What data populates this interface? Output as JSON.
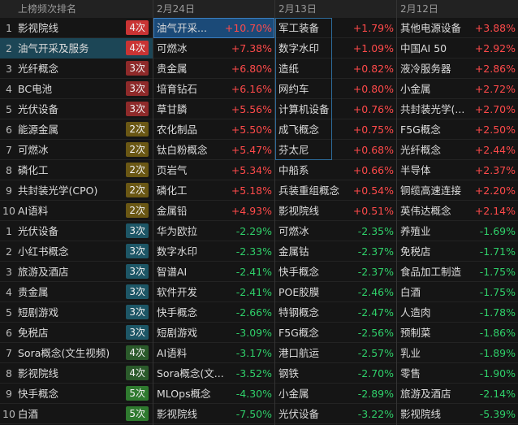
{
  "ranking": {
    "header": "上榜频次排名",
    "rows": [
      {
        "rank": 1,
        "name": "影视院线",
        "count": "4次",
        "badge_color": "#c93434"
      },
      {
        "rank": 2,
        "name": "油气开采及服务",
        "count": "4次",
        "badge_color": "#c93434"
      },
      {
        "rank": 3,
        "name": "光纤概念",
        "count": "3次",
        "badge_color": "#8e2a2a"
      },
      {
        "rank": 4,
        "name": "BC电池",
        "count": "3次",
        "badge_color": "#8e2a2a"
      },
      {
        "rank": 5,
        "name": "光伏设备",
        "count": "3次",
        "badge_color": "#8e2a2a"
      },
      {
        "rank": 6,
        "name": "能源金属",
        "count": "2次",
        "badge_color": "#6a5714"
      },
      {
        "rank": 7,
        "name": "可燃冰",
        "count": "2次",
        "badge_color": "#6a5714"
      },
      {
        "rank": 8,
        "name": "磷化工",
        "count": "2次",
        "badge_color": "#6a5714"
      },
      {
        "rank": 9,
        "name": "共封装光学(CPO)",
        "count": "2次",
        "badge_color": "#6a5714"
      },
      {
        "rank": 10,
        "name": "AI语料",
        "count": "2次",
        "badge_color": "#6a5714"
      },
      {
        "rank": 1,
        "name": "光伏设备",
        "count": "3次",
        "badge_color": "#1d5666"
      },
      {
        "rank": 2,
        "name": "小红书概念",
        "count": "3次",
        "badge_color": "#1d5666"
      },
      {
        "rank": 3,
        "name": "旅游及酒店",
        "count": "3次",
        "badge_color": "#1d5666"
      },
      {
        "rank": 4,
        "name": "贵金属",
        "count": "3次",
        "badge_color": "#1d5666"
      },
      {
        "rank": 5,
        "name": "短剧游戏",
        "count": "3次",
        "badge_color": "#1d5666"
      },
      {
        "rank": 6,
        "name": "免税店",
        "count": "3次",
        "badge_color": "#1d5666"
      },
      {
        "rank": 7,
        "name": "Sora概念(文生视频)",
        "count": "4次",
        "badge_color": "#2b5a2b"
      },
      {
        "rank": 8,
        "name": "影视院线",
        "count": "4次",
        "badge_color": "#2b5a2b"
      },
      {
        "rank": 9,
        "name": "快手概念",
        "count": "5次",
        "badge_color": "#2f7a2f"
      },
      {
        "rank": 10,
        "name": "白酒",
        "count": "5次",
        "badge_color": "#2f7a2f"
      }
    ]
  },
  "days": [
    {
      "date": "2月24日",
      "rows": [
        {
          "name": "油气开采...",
          "change": "+10.70%"
        },
        {
          "name": "可燃冰",
          "change": "+7.38%"
        },
        {
          "name": "贵金属",
          "change": "+6.80%"
        },
        {
          "name": "培育钻石",
          "change": "+6.16%"
        },
        {
          "name": "草甘膦",
          "change": "+5.56%"
        },
        {
          "name": "农化制品",
          "change": "+5.50%"
        },
        {
          "name": "钛白粉概念",
          "change": "+5.47%"
        },
        {
          "name": "页岩气",
          "change": "+5.34%"
        },
        {
          "name": "磷化工",
          "change": "+5.18%"
        },
        {
          "name": "金属铅",
          "change": "+4.93%"
        },
        {
          "name": "华为欧拉",
          "change": "-2.29%"
        },
        {
          "name": "数字水印",
          "change": "-2.33%"
        },
        {
          "name": "智谱AI",
          "change": "-2.41%"
        },
        {
          "name": "软件开发",
          "change": "-2.41%"
        },
        {
          "name": "快手概念",
          "change": "-2.66%"
        },
        {
          "name": "短剧游戏",
          "change": "-3.09%"
        },
        {
          "name": "AI语料",
          "change": "-3.17%"
        },
        {
          "name": "Sora概念(文...",
          "change": "-3.52%"
        },
        {
          "name": "MLOps概念",
          "change": "-4.30%"
        },
        {
          "name": "影视院线",
          "change": "-7.50%"
        }
      ]
    },
    {
      "date": "2月13日",
      "rows": [
        {
          "name": "军工装备",
          "change": "+1.79%"
        },
        {
          "name": "数字水印",
          "change": "+1.09%"
        },
        {
          "name": "造纸",
          "change": "+0.82%"
        },
        {
          "name": "网约车",
          "change": "+0.80%"
        },
        {
          "name": "计算机设备",
          "change": "+0.76%"
        },
        {
          "name": "成飞概念",
          "change": "+0.75%"
        },
        {
          "name": "芬太尼",
          "change": "+0.68%"
        },
        {
          "name": "中船系",
          "change": "+0.66%"
        },
        {
          "name": "兵装重组概念",
          "change": "+0.54%"
        },
        {
          "name": "影视院线",
          "change": "+0.51%"
        },
        {
          "name": "可燃冰",
          "change": "-2.35%"
        },
        {
          "name": "金属钴",
          "change": "-2.37%"
        },
        {
          "name": "快手概念",
          "change": "-2.37%"
        },
        {
          "name": "POE胶膜",
          "change": "-2.46%"
        },
        {
          "name": "特钢概念",
          "change": "-2.47%"
        },
        {
          "name": "F5G概念",
          "change": "-2.56%"
        },
        {
          "name": "港口航运",
          "change": "-2.57%"
        },
        {
          "name": "钢铁",
          "change": "-2.70%"
        },
        {
          "name": "小金属",
          "change": "-2.89%"
        },
        {
          "name": "光伏设备",
          "change": "-3.22%"
        }
      ]
    },
    {
      "date": "2月12日",
      "rows": [
        {
          "name": "其他电源设备",
          "change": "+3.88%"
        },
        {
          "name": "中国AI 50",
          "change": "+2.92%"
        },
        {
          "name": "液冷服务器",
          "change": "+2.86%"
        },
        {
          "name": "小金属",
          "change": "+2.72%"
        },
        {
          "name": "共封装光学(...",
          "change": "+2.70%"
        },
        {
          "name": "F5G概念",
          "change": "+2.50%"
        },
        {
          "name": "光纤概念",
          "change": "+2.44%"
        },
        {
          "name": "半导体",
          "change": "+2.37%"
        },
        {
          "name": "铜缆高速连接",
          "change": "+2.20%"
        },
        {
          "name": "英伟达概念",
          "change": "+2.14%"
        },
        {
          "name": "养殖业",
          "change": "-1.69%"
        },
        {
          "name": "免税店",
          "change": "-1.71%"
        },
        {
          "name": "食品加工制造",
          "change": "-1.75%"
        },
        {
          "name": "白酒",
          "change": "-1.75%"
        },
        {
          "name": "人造肉",
          "change": "-1.78%"
        },
        {
          "name": "预制菜",
          "change": "-1.86%"
        },
        {
          "name": "乳业",
          "change": "-1.89%"
        },
        {
          "name": "零售",
          "change": "-1.90%"
        },
        {
          "name": "旅游及酒店",
          "change": "-2.14%"
        },
        {
          "name": "影视院线",
          "change": "-5.39%"
        }
      ]
    }
  ]
}
